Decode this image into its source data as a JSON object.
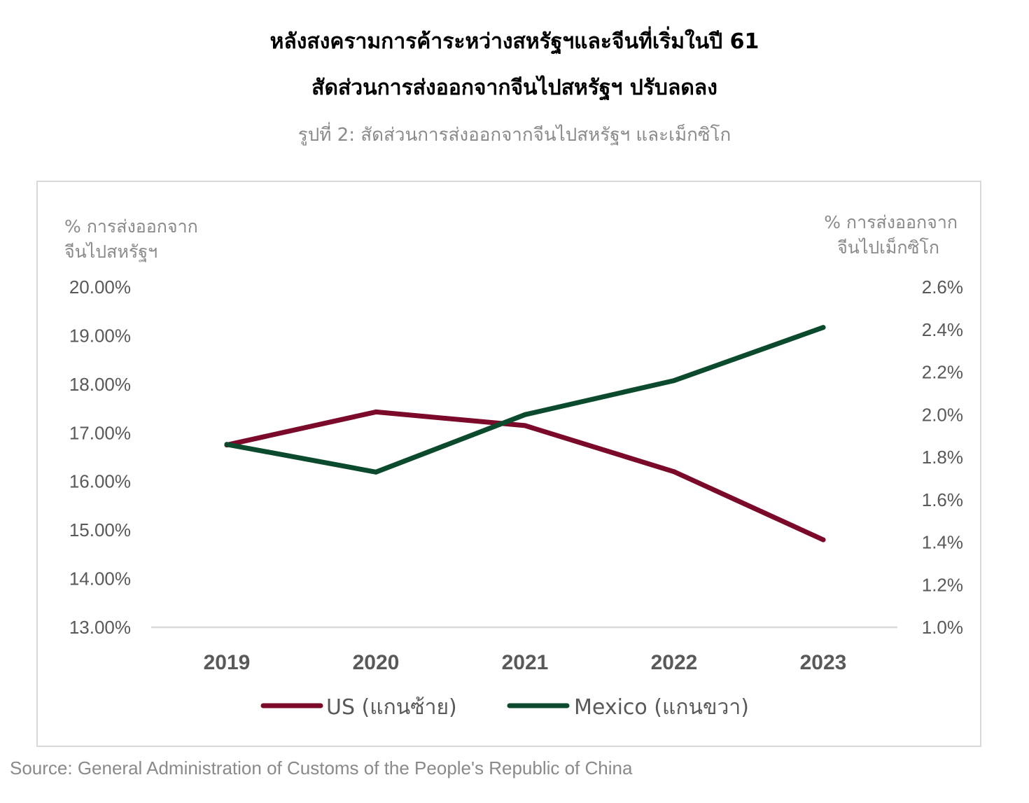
{
  "title_line1": "หลังสงครามการค้าระหว่างสหรัฐฯและจีนที่เริ่มในปี 61",
  "title_line2": "สัดส่วนการส่งออกจากจีนไปสหรัฐฯ ปรับลดลง",
  "subtitle": "รูปที่ 2: สัดส่วนการส่งออกจากจีนไปสหรัฐฯ และเม็กซิโก",
  "source": "Source: General Administration of Customs of the People's Republic of China",
  "colors": {
    "us": "#7b0a2a",
    "mexico": "#0b4a2c"
  },
  "chart_data": {
    "type": "line",
    "x": [
      "2019",
      "2020",
      "2021",
      "2022",
      "2023"
    ],
    "left_axis": {
      "label_line1": "% การส่งออกจาก",
      "label_line2": "จีนไปสหรัฐฯ",
      "ylim": [
        13.0,
        20.0
      ],
      "ticks": [
        "20.00%",
        "19.00%",
        "18.00%",
        "17.00%",
        "16.00%",
        "15.00%",
        "14.00%",
        "13.00%"
      ]
    },
    "right_axis": {
      "label_line1": "% การส่งออกจาก",
      "label_line2": "จีนไปเม็กซิโก",
      "ylim": [
        1.0,
        2.6
      ],
      "ticks": [
        "2.6%",
        "2.4%",
        "2.2%",
        "2.0%",
        "1.8%",
        "1.6%",
        "1.4%",
        "1.2%",
        "1.0%"
      ]
    },
    "series": [
      {
        "name": "US (แกนซ้าย)",
        "axis": "left",
        "values": [
          16.75,
          17.43,
          17.15,
          16.2,
          14.8
        ]
      },
      {
        "name": "Mexico (แกนขวา)",
        "axis": "right",
        "values": [
          1.86,
          1.73,
          2.0,
          2.16,
          2.41
        ]
      }
    ],
    "legend_position": "bottom",
    "grid": false
  }
}
